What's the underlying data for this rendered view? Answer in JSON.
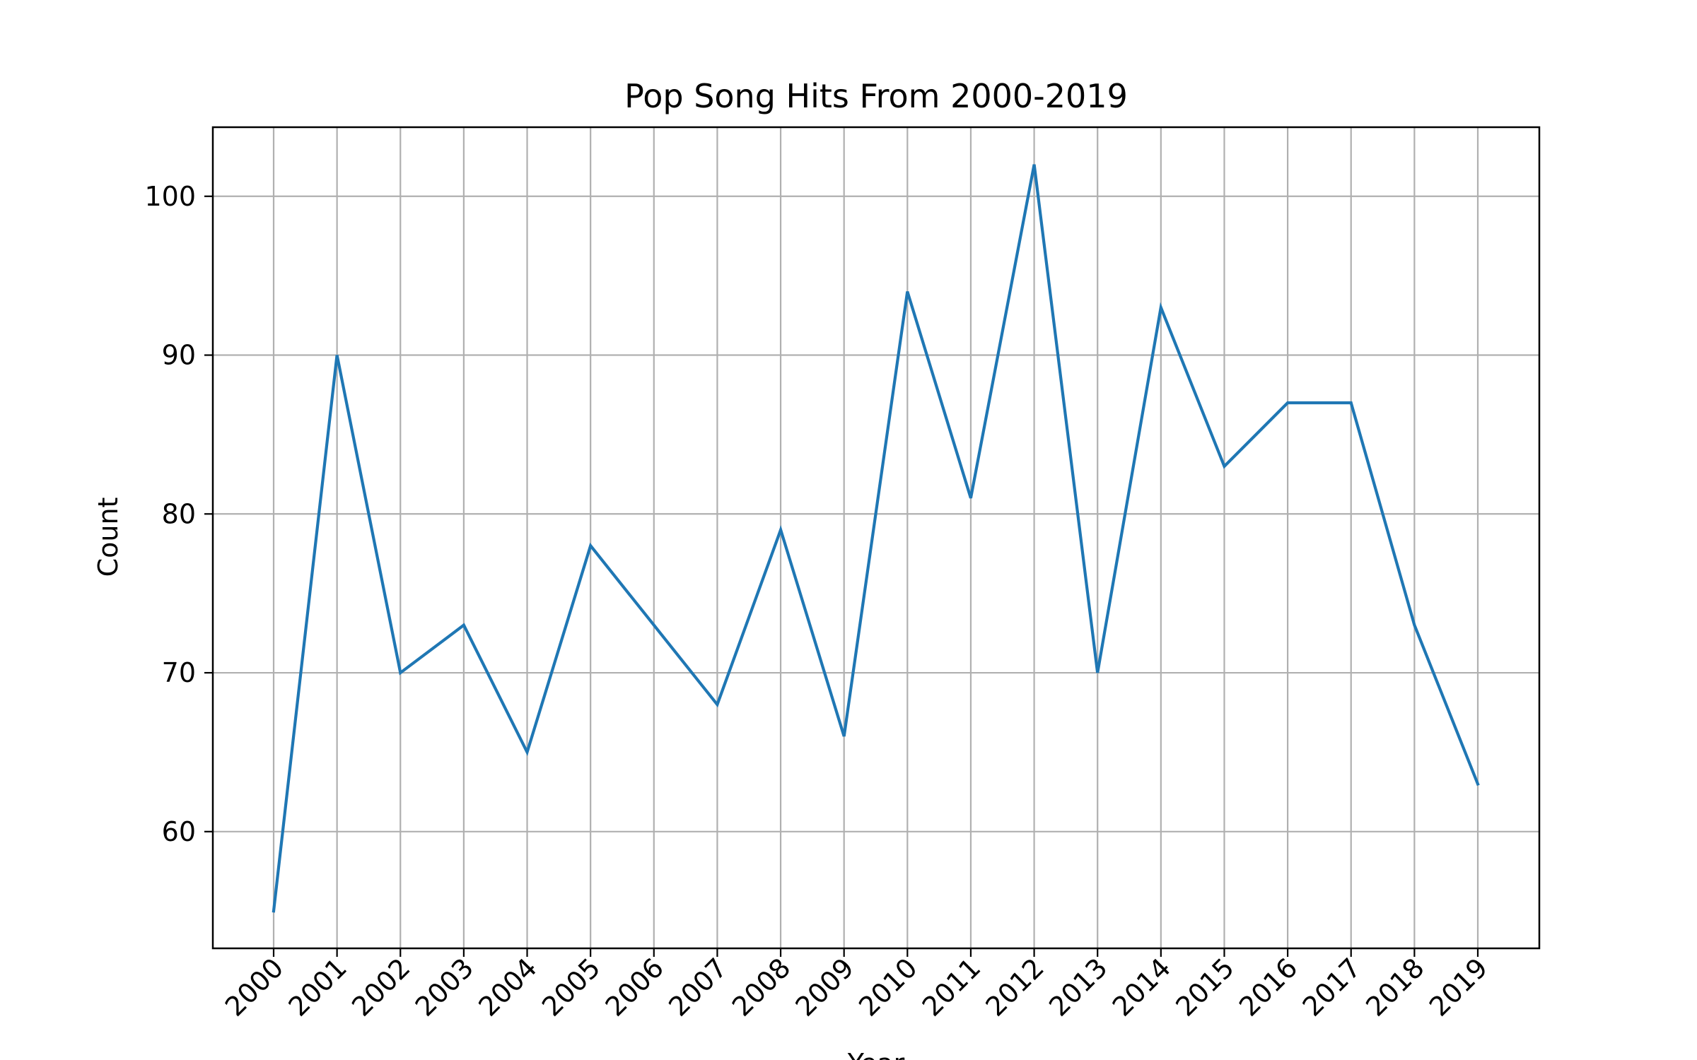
{
  "chart_data": {
    "type": "line",
    "title": "Pop Song Hits From 2000-2019",
    "xlabel": "Year",
    "ylabel": "Count",
    "categories": [
      "2000",
      "2001",
      "2002",
      "2003",
      "2004",
      "2005",
      "2006",
      "2007",
      "2008",
      "2009",
      "2010",
      "2011",
      "2012",
      "2013",
      "2014",
      "2015",
      "2016",
      "2017",
      "2018",
      "2019"
    ],
    "series": [
      {
        "values": [
          55,
          90,
          70,
          73,
          65,
          78,
          73,
          68,
          79,
          66,
          94,
          81,
          102,
          70,
          93,
          83,
          87,
          87,
          73,
          63
        ]
      }
    ],
    "yticks": [
      "60",
      "70",
      "80",
      "90",
      "100"
    ],
    "ylim": [
      52.65,
      104.35
    ],
    "grid": true,
    "legend": "none",
    "colors": {
      "line": "#1f77b4",
      "grid": "#b0b0b0",
      "axes": "#000000"
    }
  }
}
